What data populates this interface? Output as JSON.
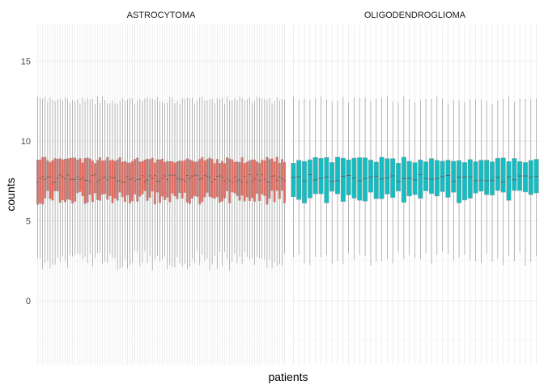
{
  "chart_data": {
    "type": "boxplot",
    "xlabel": "patients",
    "ylabel": "counts",
    "ylim": [
      -4,
      17.3
    ],
    "y_ticks": [
      0,
      5,
      10,
      15
    ],
    "grid": true,
    "legend": "none",
    "panels": [
      {
        "name": "ASTROCYTOMA",
        "color": "#e06c61",
        "box_count": 100,
        "q1_range": [
          6.0,
          6.9
        ],
        "median_range": [
          7.4,
          7.9
        ],
        "q3_range": [
          8.6,
          9.0
        ],
        "whisker_low_range": [
          1.9,
          3.1
        ],
        "whisker_high_range": [
          12.3,
          12.8
        ]
      },
      {
        "name": "OLIGODENDROGLIOMA",
        "color": "#17bcc1",
        "box_count": 45,
        "q1_range": [
          6.1,
          6.9
        ],
        "median_range": [
          7.4,
          7.9
        ],
        "q3_range": [
          8.6,
          9.0
        ],
        "whisker_low_range": [
          2.2,
          3.1
        ],
        "whisker_high_range": [
          12.3,
          12.8
        ]
      }
    ]
  }
}
